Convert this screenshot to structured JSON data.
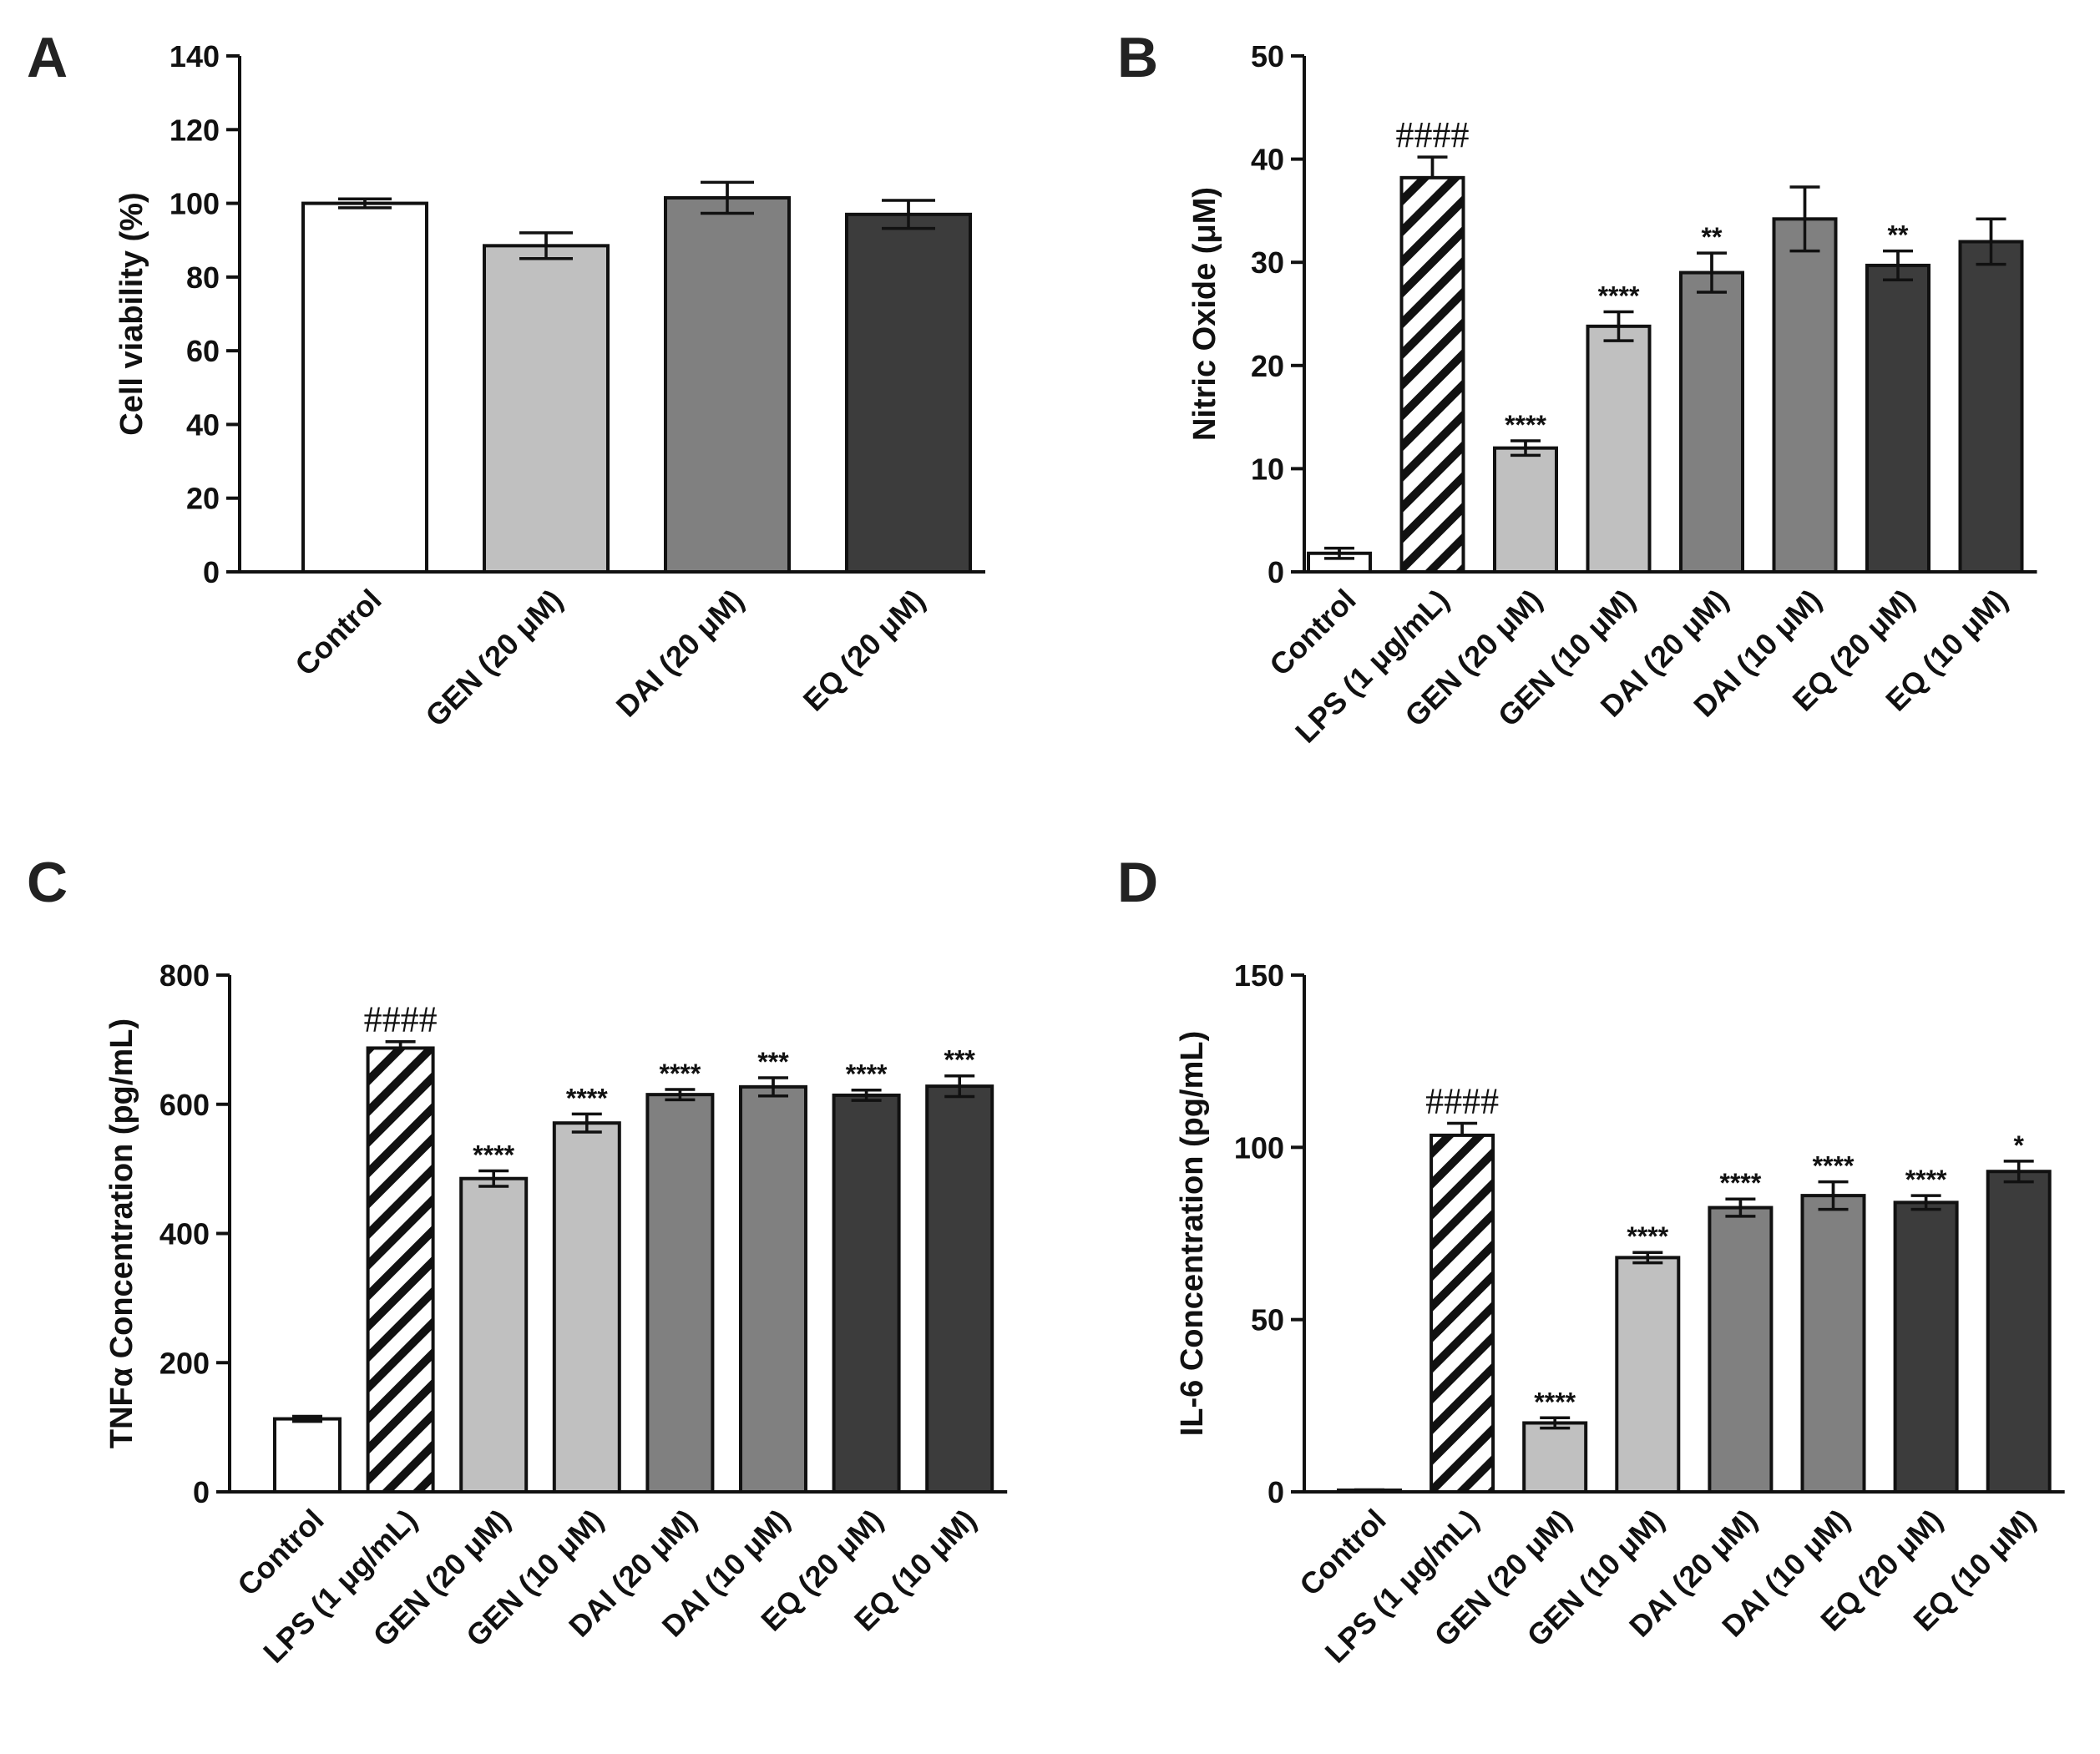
{
  "chart_data": [
    {
      "panel": "A",
      "type": "bar",
      "ylabel": "Cell viability (%)",
      "ylim": [
        0,
        140
      ],
      "yticks": [
        0,
        20,
        40,
        60,
        80,
        100,
        120,
        140
      ],
      "categories": [
        "Control",
        "GEN (20 μM)",
        "DAI (20 μM)",
        "EQ (20 μM)"
      ],
      "values": [
        100,
        88.5,
        101.5,
        97
      ],
      "errors": [
        1.2,
        3.5,
        4.2,
        3.8
      ],
      "annotations": [
        "",
        "",
        "",
        ""
      ],
      "fills": [
        "#ffffff",
        "#c0c0c0",
        "#808080",
        "#3c3c3c"
      ],
      "patterns": [
        "solid",
        "solid",
        "solid",
        "solid"
      ]
    },
    {
      "panel": "B",
      "type": "bar",
      "ylabel": "Nitric Oxide (μM)",
      "ylim": [
        0,
        50
      ],
      "yticks": [
        0,
        10,
        20,
        30,
        40,
        50
      ],
      "categories": [
        "Control",
        "LPS (1 μg/mL)",
        "GEN (20 μM)",
        "GEN (10 μM)",
        "DAI (20 μM)",
        "DAI (10 μM)",
        "EQ (20 μM)",
        "EQ (10 μM)"
      ],
      "values": [
        1.8,
        38.2,
        12,
        23.8,
        29,
        34.2,
        29.7,
        32
      ],
      "errors": [
        0.5,
        2.0,
        0.7,
        1.4,
        1.9,
        3.1,
        1.4,
        2.2
      ],
      "annotations": [
        "",
        "####",
        "****",
        "****",
        "**",
        "",
        "**",
        ""
      ],
      "fills": [
        "#ffffff",
        "#ffffff",
        "#c0c0c0",
        "#c0c0c0",
        "#808080",
        "#808080",
        "#3c3c3c",
        "#3c3c3c"
      ],
      "patterns": [
        "solid",
        "hatch",
        "solid",
        "solid",
        "solid",
        "solid",
        "solid",
        "solid"
      ]
    },
    {
      "panel": "C",
      "type": "bar",
      "ylabel": "TNFα Concentration (pg/mL)",
      "ylim": [
        0,
        800
      ],
      "yticks": [
        0,
        200,
        400,
        600,
        800
      ],
      "categories": [
        "Control",
        "LPS (1 μg/mL)",
        "GEN (20 μM)",
        "GEN (10 μM)",
        "DAI (20 μM)",
        "DAI (10 μM)",
        "EQ (20 μM)",
        "EQ (10 μM)"
      ],
      "values": [
        113,
        687,
        485,
        571,
        615,
        627,
        614,
        628
      ],
      "errors": [
        4,
        10,
        12,
        14,
        8,
        14,
        8,
        16
      ],
      "annotations": [
        "",
        "####",
        "****",
        "****",
        "****",
        "***",
        "****",
        "***"
      ],
      "fills": [
        "#ffffff",
        "#ffffff",
        "#c0c0c0",
        "#c0c0c0",
        "#808080",
        "#808080",
        "#3c3c3c",
        "#3c3c3c"
      ],
      "patterns": [
        "solid",
        "hatch",
        "solid",
        "solid",
        "solid",
        "solid",
        "solid",
        "solid"
      ]
    },
    {
      "panel": "D",
      "type": "bar",
      "ylabel": "IL-6 Concentration (pg/mL)",
      "ylim": [
        0,
        150
      ],
      "yticks": [
        0,
        50,
        100,
        150
      ],
      "categories": [
        "Control",
        "LPS (1 μg/mL)",
        "GEN (20 μM)",
        "GEN (10 μM)",
        "DAI (20 μM)",
        "DAI (10 μM)",
        "EQ (20 μM)",
        "EQ (10 μM)"
      ],
      "values": [
        0.3,
        103.5,
        20,
        68,
        82.5,
        86,
        84,
        93
      ],
      "errors": [
        0.3,
        3.5,
        1.5,
        1.5,
        2.5,
        4,
        2,
        3
      ],
      "annotations": [
        "",
        "####",
        "****",
        "****",
        "****",
        "****",
        "****",
        "*"
      ],
      "fills": [
        "#ffffff",
        "#ffffff",
        "#c0c0c0",
        "#c0c0c0",
        "#808080",
        "#808080",
        "#3c3c3c",
        "#3c3c3c"
      ],
      "patterns": [
        "solid",
        "hatch",
        "solid",
        "solid",
        "solid",
        "solid",
        "solid",
        "solid"
      ]
    }
  ]
}
